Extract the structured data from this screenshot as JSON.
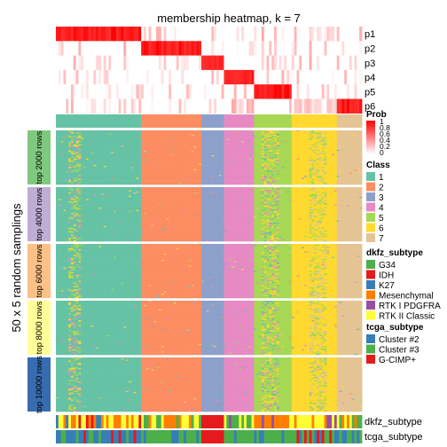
{
  "chart_data": {
    "type": "heatmap",
    "title": "membership heatmap, k = 7",
    "ylabel": "50 x 5 random samplings",
    "prob_rows": [
      "p1",
      "p2",
      "p3",
      "p4",
      "p5",
      "p6"
    ],
    "row_groups": [
      "top 2000 rows",
      "top 4000 rows",
      "top 6000 rows",
      "top 8000 rows",
      "top 10000 rows"
    ],
    "row_group_colors": [
      "#7fc97f",
      "#beaed4",
      "#fdc086",
      "#ffff99",
      "#386cb0"
    ],
    "prob_legend": {
      "title": "Prob",
      "ticks": [
        "1",
        "0.8",
        "0.6",
        "0.4",
        "0.2",
        "0"
      ]
    },
    "class_legend": {
      "title": "Class",
      "labels": [
        "1",
        "2",
        "3",
        "4",
        "5",
        "6",
        "7"
      ],
      "colors": [
        "#66c2a5",
        "#fc8d62",
        "#8da0cb",
        "#e78ac3",
        "#a6d854",
        "#ffd92f",
        "#e5c494"
      ],
      "column_counts": [
        34,
        24,
        9,
        12,
        15,
        18,
        10
      ]
    },
    "dkfz_legend": {
      "title": "dkfz_subtype",
      "labels": [
        "G34",
        "IDH",
        "K27",
        "Mesenchymal",
        "RTK I PDGFRA",
        "RTK II Classic"
      ],
      "colors": [
        "#4daf4a",
        "#e41a1c",
        "#377eb8",
        "#ff7f00",
        "#984ea3",
        "#ffff33"
      ]
    },
    "tcga_legend": {
      "title": "tcga_subtype",
      "labels": [
        "Cluster #2",
        "Cluster #3",
        "G-CIMP+"
      ],
      "colors": [
        "#377eb8",
        "#4daf4a",
        "#e41a1c"
      ]
    },
    "annotation_labels": [
      "dkfz_subtype",
      "tcga_subtype"
    ]
  }
}
